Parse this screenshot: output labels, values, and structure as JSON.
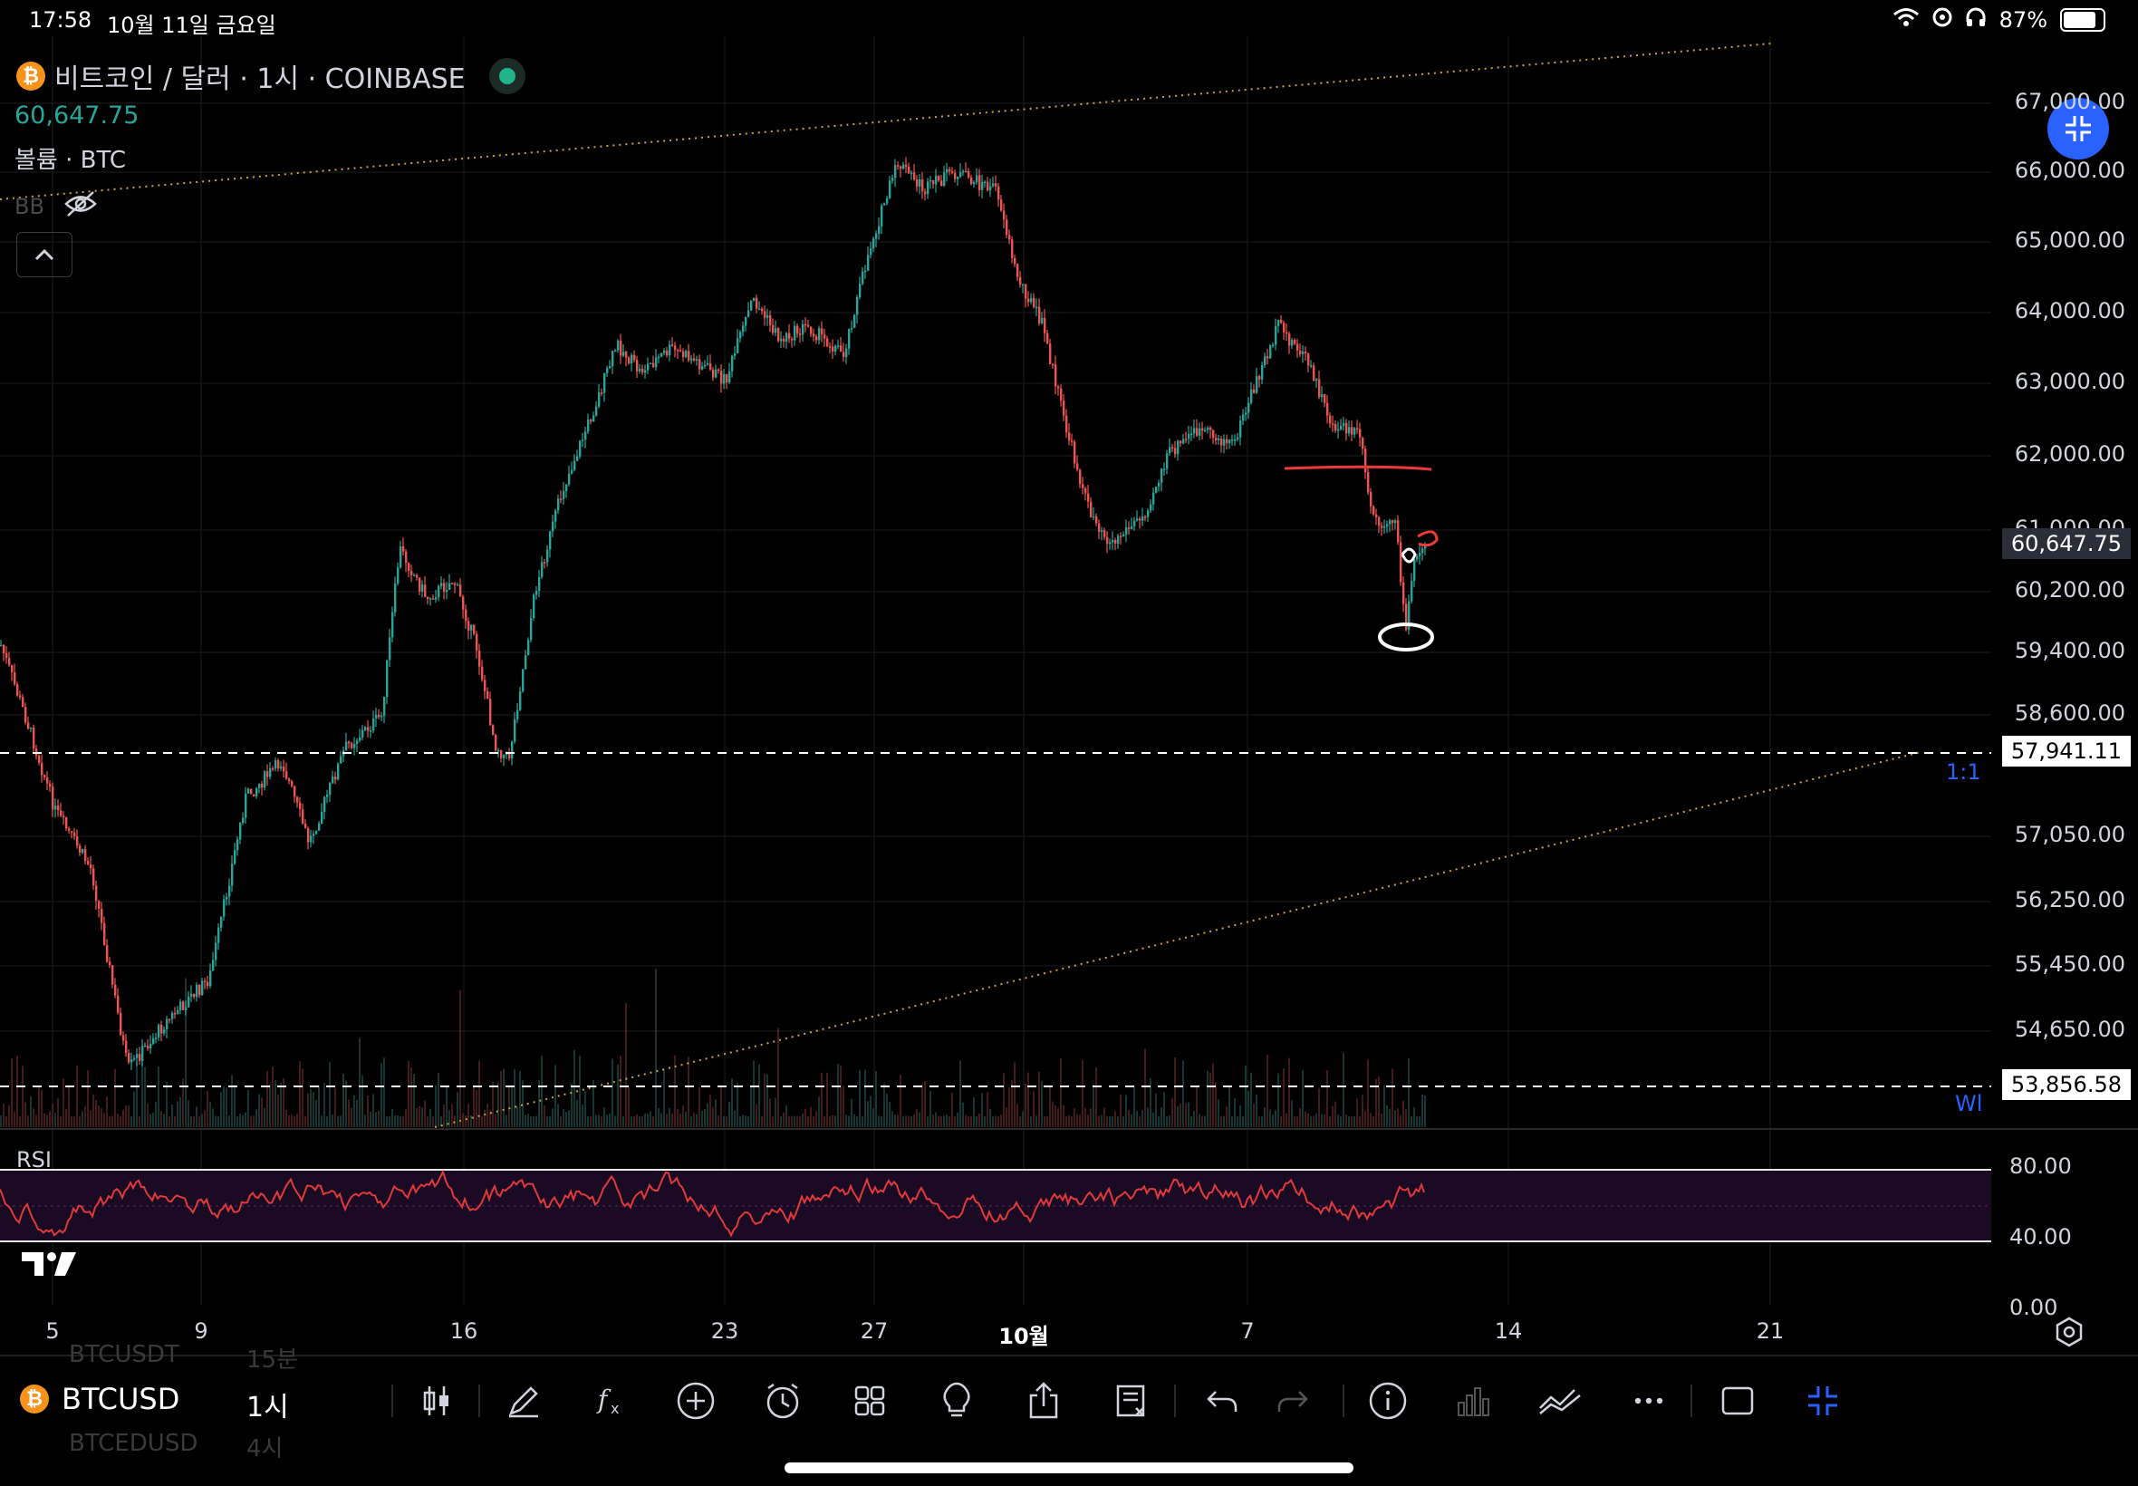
{
  "status_bar": {
    "time": "17:58",
    "date": "10월 11일 금요일",
    "battery": "87%",
    "battery_level": 0.87
  },
  "header": {
    "symbol_name": "비트코인 / 달러 · 1시 · COINBASE",
    "last_price": "60,647.75",
    "volume_label": "볼륨 · BTC",
    "bb_label": "BB"
  },
  "price_axis": {
    "labels": [
      "67,000.00",
      "66,000.00",
      "65,000.00",
      "64,000.00",
      "63,000.00",
      "62,000.00",
      "61,000.00",
      "60,200.00",
      "59,400.00",
      "58,600.00",
      "57,050.00",
      "56,250.00",
      "55,450.00",
      "54,650.00"
    ],
    "last_price_tag": "60,647.75",
    "hline_tag_1": "57,941.11",
    "hline_tag_2": "53,856.58",
    "scale_mode": "1:1",
    "wl_label": "Wl"
  },
  "rsi": {
    "label": "RSI",
    "axis_labels": [
      "80.00",
      "40.00",
      "0.00"
    ]
  },
  "time_axis": {
    "labels": [
      "5",
      "9",
      "16",
      "23",
      "27",
      "10월",
      "7",
      "14",
      "21"
    ]
  },
  "toolbar": {
    "symbol": "BTCUSD",
    "interval": "1시",
    "ghost_items": [
      "BTCUSDT",
      "15분",
      "BTCEDUSD",
      "4시"
    ],
    "icons": [
      "candles-icon",
      "pencil-icon",
      "function-icon",
      "add-icon",
      "alarm-icon",
      "grid-icon",
      "bulb-icon",
      "share-icon",
      "checklist-icon",
      "undo-icon",
      "redo-icon",
      "info-icon",
      "volume-bars-icon",
      "trend-icon",
      "more-icon",
      "square-icon",
      "compress-icon"
    ]
  },
  "colors": {
    "up": "#26a69a",
    "down": "#ef5350",
    "rsi_line": "#e03a3a",
    "rsi_band": "#1a0a24",
    "trendline": "#c8a53a",
    "accent": "#2962ff"
  }
}
